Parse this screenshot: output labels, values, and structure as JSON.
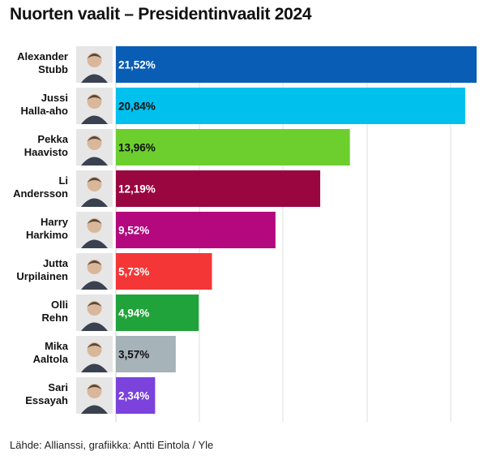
{
  "title": "Nuorten vaalit – Presidentinvaalit 2024",
  "source": "Lähde: Allianssi, grafiikka: Antti Eintola / Yle",
  "chart_data": {
    "type": "bar",
    "orientation": "horizontal",
    "title": "Nuorten vaalit – Presidentinvaalit 2024",
    "categories": [
      "Alexander Stubb",
      "Jussi Halla-aho",
      "Pekka Haavisto",
      "Li Andersson",
      "Harry Harkimo",
      "Jutta Urpilainen",
      "Olli Rehn",
      "Mika Aaltola",
      "Sari Essayah"
    ],
    "label_lines": [
      [
        "Alexander",
        "Stubb"
      ],
      [
        "Jussi",
        "Halla-aho"
      ],
      [
        "Pekka",
        "Haavisto"
      ],
      [
        "Li",
        "Andersson"
      ],
      [
        "Harry",
        "Harkimo"
      ],
      [
        "Jutta",
        "Urpilainen"
      ],
      [
        "Olli",
        "Rehn"
      ],
      [
        "Mika",
        "Aaltola"
      ],
      [
        "Sari",
        "Essayah"
      ]
    ],
    "values": [
      21.52,
      20.84,
      13.96,
      12.19,
      9.52,
      5.73,
      4.94,
      3.57,
      2.34
    ],
    "value_labels": [
      "21,52%",
      "20,84%",
      "13,96%",
      "12,19%",
      "9,52%",
      "5,73%",
      "4,94%",
      "3,57%",
      "2,34%"
    ],
    "colors": [
      "#0a5db5",
      "#00c0ee",
      "#6ccf2e",
      "#9a0640",
      "#b3087e",
      "#f43636",
      "#20a33a",
      "#a6b3b9",
      "#7b42dc"
    ],
    "value_label_colors": [
      "#ffffff",
      "#111111",
      "#111111",
      "#ffffff",
      "#ffffff",
      "#ffffff",
      "#ffffff",
      "#111111",
      "#ffffff"
    ],
    "xlim": [
      0,
      21.52
    ],
    "grid": true,
    "legend": "none",
    "icons": [
      "portrait-icon",
      "portrait-icon",
      "portrait-icon",
      "portrait-icon",
      "portrait-icon",
      "portrait-icon",
      "portrait-icon",
      "portrait-icon",
      "portrait-icon"
    ]
  }
}
